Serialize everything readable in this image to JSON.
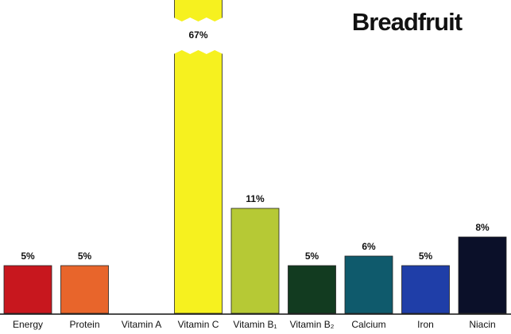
{
  "chart_data": {
    "type": "bar",
    "title": "Breadfruit",
    "categories": [
      "Energy",
      "Protein",
      "Vitamin A",
      "Vitamin C",
      "Vitamin B₁",
      "Vitamin B₂",
      "Calcium",
      "Iron",
      "Niacin"
    ],
    "values": [
      5,
      5,
      0,
      67,
      11,
      5,
      6,
      5,
      8
    ],
    "value_labels": [
      "5%",
      "5%",
      null,
      "67%",
      "11%",
      "5%",
      "6%",
      "5%",
      "8%"
    ],
    "colors": [
      "#c8171e",
      "#e8652b",
      "#2a2a2a",
      "#f6f11f",
      "#b6c935",
      "#123b20",
      "#0f5a6c",
      "#1f3ea8",
      "#0b1029"
    ]
  }
}
